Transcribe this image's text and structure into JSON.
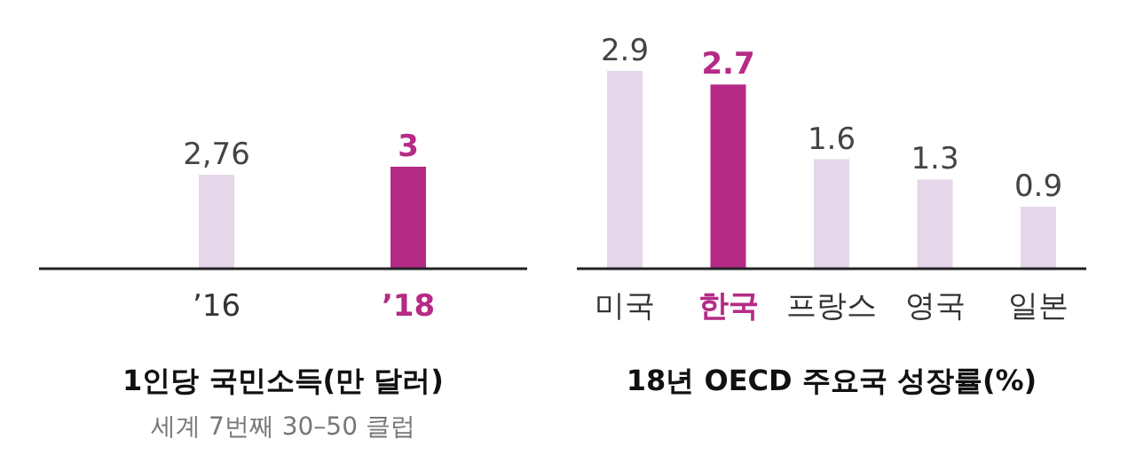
{
  "chart_data": [
    {
      "type": "bar",
      "title": "1인당 국민소득(만 달러)",
      "subtitle": "세계 7번째 30–50 클럽",
      "categories": [
        "’16",
        "’18"
      ],
      "values": [
        2.76,
        3
      ],
      "colors": [
        "#e5d6e9",
        "#b52b85"
      ],
      "value_labels": [
        "2,76",
        "3"
      ],
      "tick_labels": "x"
    },
    {
      "type": "bar",
      "title": "18년  OECD 주요국 성장률(%)",
      "categories": [
        "미국",
        "한국",
        "프랑스",
        "영국",
        "일본"
      ],
      "values": [
        2.9,
        2.7,
        1.6,
        1.3,
        0.9
      ],
      "colors": [
        "#e5d6e9",
        "#b52b85",
        "#e5d6e9",
        "#e5d6e9",
        "#e5d6e9"
      ],
      "data_labels": true,
      "tick_labels": "x"
    }
  ]
}
